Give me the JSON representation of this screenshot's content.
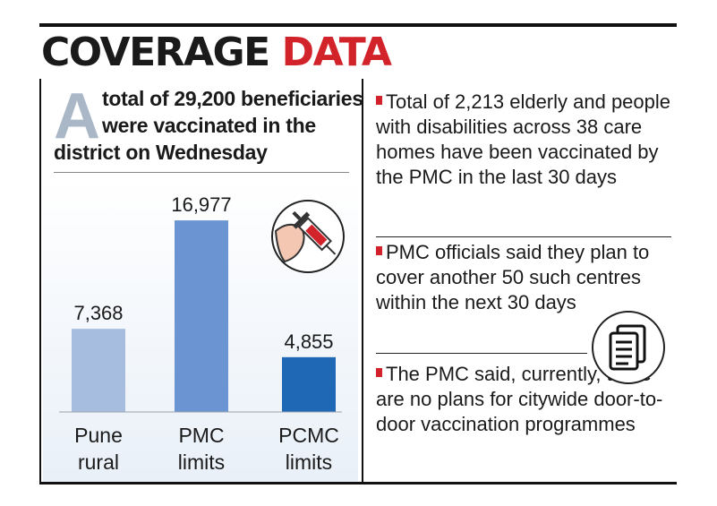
{
  "headline": {
    "part1": "COVERAGE",
    "part2": "DATA"
  },
  "lead": {
    "dropcap": "A",
    "line1": "total of 29,200 beneficiaries",
    "line2": "were vaccinated in the",
    "line3": "district on Wednesday"
  },
  "chart_data": {
    "type": "bar",
    "categories": [
      "Pune rural",
      "PMC limits",
      "PCMC limits"
    ],
    "category_lines": [
      [
        "Pune",
        "rural"
      ],
      [
        "PMC",
        "limits"
      ],
      [
        "PCMC",
        "limits"
      ]
    ],
    "values": [
      7368,
      16977,
      4855
    ],
    "value_labels": [
      "7,368",
      "16,977",
      "4,855"
    ],
    "colors": [
      "#a7bde0",
      "#6b95d2",
      "#1f68b6"
    ],
    "title": "",
    "xlabel": "",
    "ylabel": "",
    "ylim": [
      0,
      20000
    ],
    "grid": false,
    "legend": "none"
  },
  "notes": [
    "Total of 2,213 elderly and people with disabilities across 38 care homes have been vaccinated by the PMC in the last 30 days",
    "PMC officials said they plan to cover another 50 such centres within the next 30 days",
    "The PMC said, currently, there are no plans for citywide door-to-door vaccination programmes"
  ],
  "icons": {
    "syringe": "syringe-arm-icon",
    "document": "document-icon"
  },
  "colors": {
    "accent": "#d2232a",
    "dropcap": "#aab7c7"
  }
}
